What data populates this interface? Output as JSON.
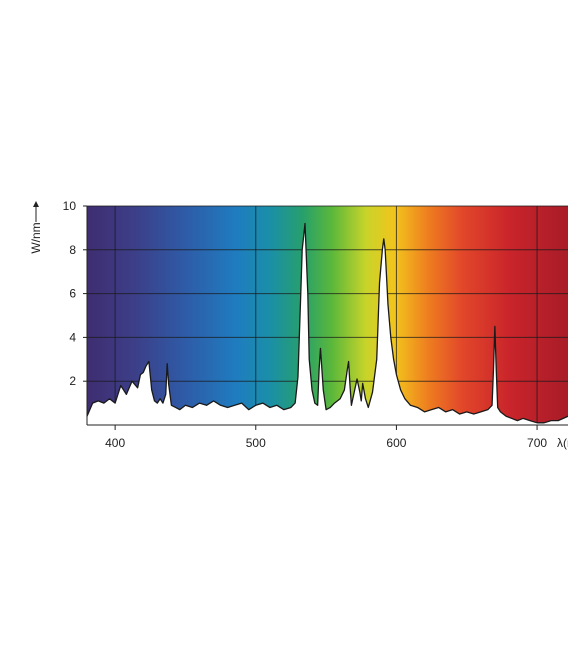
{
  "chart_data": {
    "type": "area",
    "title": "",
    "ylabel": "W/nm",
    "xlabel": "λ(nm)",
    "xlim": [
      380,
      722
    ],
    "ylim": [
      0,
      10
    ],
    "x_ticks": [
      400,
      500,
      600,
      700
    ],
    "y_ticks": [
      2,
      4,
      6,
      8,
      10
    ],
    "grid": true,
    "background": "visible-spectrum color gradient (violet to red)",
    "series": [
      {
        "x": [
          380,
          384,
          388,
          392,
          396,
          400,
          404,
          408,
          412,
          416,
          418,
          420,
          422,
          424,
          426,
          428,
          430,
          432,
          434,
          436,
          437,
          438,
          440,
          443,
          446,
          450,
          455,
          460,
          465,
          470,
          475,
          480,
          485,
          490,
          495,
          500,
          505,
          510,
          515,
          520,
          525,
          528,
          530,
          532,
          533,
          535,
          537,
          538,
          540,
          542,
          544,
          545,
          546,
          548,
          550,
          553,
          556,
          560,
          563,
          565,
          566,
          567,
          568,
          570,
          572,
          574,
          575,
          576,
          578,
          580,
          583,
          586,
          588,
          590,
          591,
          592,
          594,
          596,
          598,
          600,
          603,
          606,
          610,
          615,
          620,
          625,
          630,
          635,
          640,
          645,
          650,
          655,
          660,
          665,
          668,
          669,
          670,
          671,
          672,
          674,
          678,
          682,
          686,
          690,
          695,
          700,
          705,
          710,
          715,
          722
        ],
        "y": [
          0.4,
          1.0,
          1.1,
          1.0,
          1.2,
          1.0,
          1.8,
          1.4,
          2.0,
          1.7,
          2.3,
          2.4,
          2.7,
          2.9,
          1.6,
          1.1,
          1.0,
          1.2,
          1.0,
          1.4,
          2.8,
          1.9,
          0.9,
          0.8,
          0.7,
          0.9,
          0.8,
          1.0,
          0.9,
          1.1,
          0.9,
          0.8,
          0.9,
          1.0,
          0.7,
          0.9,
          1.0,
          0.8,
          0.9,
          0.7,
          0.8,
          1.0,
          2.2,
          6.0,
          8.0,
          9.2,
          6.0,
          3.0,
          1.6,
          1.0,
          0.9,
          2.5,
          3.5,
          1.6,
          0.7,
          0.8,
          1.0,
          1.2,
          1.6,
          2.5,
          2.9,
          1.8,
          0.9,
          1.5,
          2.1,
          1.5,
          1.1,
          1.9,
          1.2,
          0.8,
          1.5,
          3.0,
          6.5,
          8.0,
          8.5,
          8.0,
          5.5,
          4.0,
          3.0,
          2.3,
          1.6,
          1.2,
          0.9,
          0.8,
          0.6,
          0.7,
          0.8,
          0.6,
          0.7,
          0.5,
          0.6,
          0.5,
          0.6,
          0.7,
          0.9,
          2.5,
          4.5,
          2.5,
          0.8,
          0.6,
          0.4,
          0.3,
          0.2,
          0.3,
          0.2,
          0.1,
          0.1,
          0.2,
          0.2,
          0.4
        ]
      }
    ]
  }
}
